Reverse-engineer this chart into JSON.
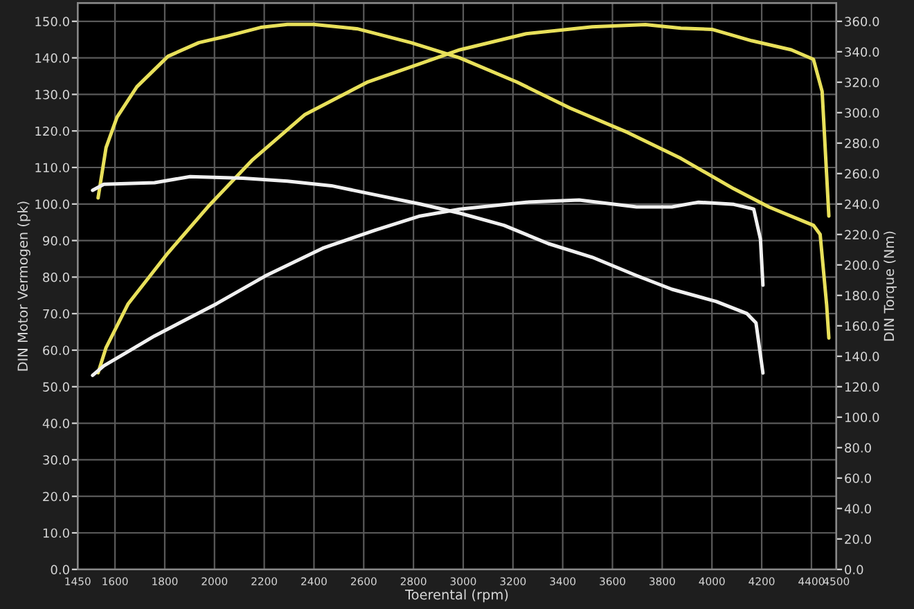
{
  "chart_data": {
    "type": "line",
    "xlabel": "Toerental (rpm)",
    "ylabel": "DIN Motor Vermogen (pk)",
    "y2label": "DIN Torque (Nm)",
    "xlim": [
      1450,
      4500
    ],
    "xticks": [
      1450,
      1600,
      1800,
      2000,
      2200,
      2400,
      2600,
      2800,
      3000,
      3200,
      3400,
      3600,
      3800,
      4000,
      4200,
      4400,
      4500
    ],
    "ylim": [
      0,
      155
    ],
    "yticks": [
      {
        "value": 0,
        "label": "0.0"
      },
      {
        "value": 10,
        "label": "10.0"
      },
      {
        "value": 20,
        "label": "20.0"
      },
      {
        "value": 30,
        "label": "30.0"
      },
      {
        "value": 40,
        "label": "40.0"
      },
      {
        "value": 50,
        "label": "50.0"
      },
      {
        "value": 60,
        "label": "60.0"
      },
      {
        "value": 70,
        "label": "70.0"
      },
      {
        "value": 80,
        "label": "80.0"
      },
      {
        "value": 90,
        "label": "90.0"
      },
      {
        "value": 100,
        "label": "100.0"
      },
      {
        "value": 110,
        "label": "110.0"
      },
      {
        "value": 120,
        "label": "120.0"
      },
      {
        "value": 130,
        "label": "130.0"
      },
      {
        "value": 140,
        "label": "140.0"
      },
      {
        "value": 150,
        "label": "150.0"
      }
    ],
    "y2lim": [
      0,
      372
    ],
    "y2ticks": [
      {
        "value": 0,
        "label": "0.0"
      },
      {
        "value": 20,
        "label": "20.0"
      },
      {
        "value": 40,
        "label": "40.0"
      },
      {
        "value": 60,
        "label": "60.0"
      },
      {
        "value": 80,
        "label": "80.0"
      },
      {
        "value": 100,
        "label": "100.0"
      },
      {
        "value": 120,
        "label": "120.0"
      },
      {
        "value": 140,
        "label": "140.0"
      },
      {
        "value": 160,
        "label": "160.0"
      },
      {
        "value": 180,
        "label": "180.0"
      },
      {
        "value": 200,
        "label": "200.0"
      },
      {
        "value": 220,
        "label": "220.0"
      },
      {
        "value": 240,
        "label": "240.0"
      },
      {
        "value": 260,
        "label": "260.0"
      },
      {
        "value": 280,
        "label": "280.0"
      },
      {
        "value": 300,
        "label": "300.0"
      },
      {
        "value": 320,
        "label": "320.0"
      },
      {
        "value": 340,
        "label": "340.0"
      },
      {
        "value": 360,
        "label": "360.0"
      }
    ],
    "grid": true,
    "marker": "none",
    "line_style": "solid",
    "legend": false,
    "series": [
      {
        "color": "#e8e05a",
        "x": [
          1532,
          1564,
          1653,
          1813,
          1973,
          2150,
          2364,
          2613,
          2826,
          2986,
          3253,
          3519,
          3733,
          3875,
          4000,
          4159,
          4319,
          4408,
          4443,
          4470
        ],
        "values": [
          53.8,
          60.7,
          72.7,
          86.6,
          99.2,
          111.9,
          124.5,
          133.3,
          138.4,
          142.2,
          146.6,
          148.5,
          149.1,
          148.1,
          147.8,
          144.7,
          142.2,
          139.6,
          130.8,
          96.7
        ]
      },
      {
        "color": "#e8e05a",
        "axis": "y2",
        "x": [
          1532,
          1564,
          1608,
          1688,
          1813,
          1937,
          2044,
          2186,
          2293,
          2399,
          2577,
          2790,
          2986,
          3217,
          3430,
          3661,
          3875,
          4088,
          4230,
          4408,
          4435,
          4461,
          4470
        ],
        "values": [
          244,
          277,
          297,
          317,
          337,
          346,
          350,
          356,
          358,
          358,
          355,
          346,
          336,
          320,
          303,
          287,
          270,
          250,
          238,
          226,
          220,
          174,
          152
        ]
      },
      {
        "color": "#f0f0f0",
        "x": [
          1510,
          1555,
          1759,
          2008,
          2204,
          2435,
          2648,
          2826,
          2986,
          3253,
          3466,
          3697,
          3839,
          3946,
          4088,
          4168,
          4195,
          4205
        ],
        "values": [
          53.1,
          55.7,
          63.9,
          72.7,
          80.3,
          87.9,
          92.9,
          96.7,
          98.6,
          100.5,
          101.1,
          99.2,
          99.2,
          100.5,
          99.9,
          98.6,
          90.4,
          77.8
        ]
      },
      {
        "color": "#f0f0f0",
        "axis": "y2",
        "x": [
          1510,
          1555,
          1759,
          1902,
          2115,
          2293,
          2470,
          2648,
          2826,
          2986,
          3164,
          3342,
          3519,
          3697,
          3839,
          4017,
          4141,
          4177,
          4205
        ],
        "values": [
          249,
          253,
          254,
          258,
          257,
          255,
          252,
          246,
          240,
          234,
          226,
          214,
          205,
          193,
          184,
          176,
          168,
          162,
          129
        ]
      }
    ]
  }
}
